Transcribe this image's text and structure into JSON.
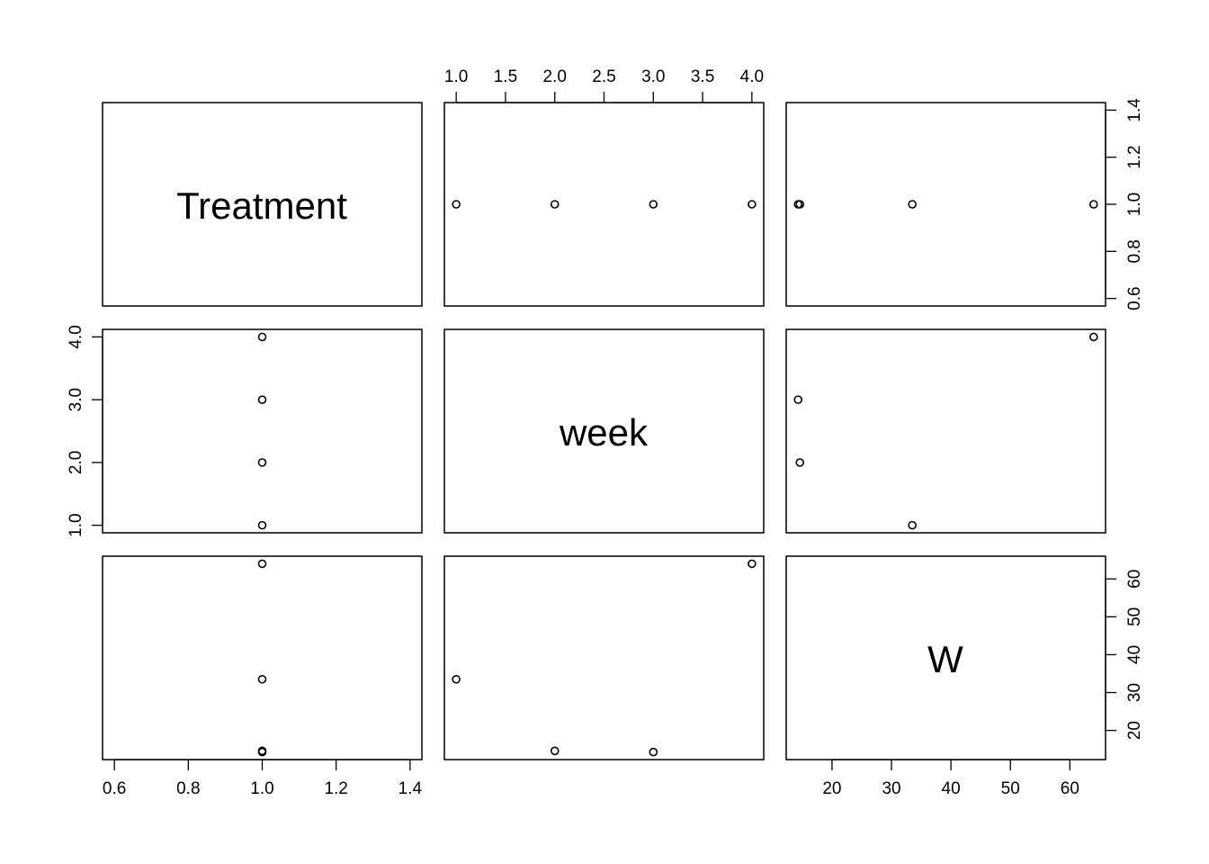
{
  "chart_data": {
    "type": "scatter",
    "variables": [
      "Treatment",
      "week",
      "W"
    ],
    "observations": {
      "Treatment": [
        1,
        1,
        1,
        1
      ],
      "week": [
        1,
        2,
        3,
        4
      ],
      "W": [
        33.5,
        14.6,
        14.3,
        64.0
      ]
    },
    "axis_ticks": {
      "Treatment": [
        "0.6",
        "0.8",
        "1.0",
        "1.2",
        "1.4"
      ],
      "week_top": [
        "1.0",
        "1.5",
        "2.0",
        "2.5",
        "3.0",
        "3.5",
        "4.0"
      ],
      "week_left": [
        "1.0",
        "2.0",
        "3.0",
        "4.0"
      ],
      "W_bottom": [
        "20",
        "30",
        "40",
        "50",
        "60"
      ],
      "W_right": [
        "20",
        "30",
        "40",
        "50",
        "60"
      ]
    },
    "axis_ranges": {
      "Treatment": [
        0.568,
        1.432
      ],
      "week": [
        0.88,
        4.12
      ],
      "W": [
        12.3,
        66.0
      ]
    },
    "grid": false
  }
}
